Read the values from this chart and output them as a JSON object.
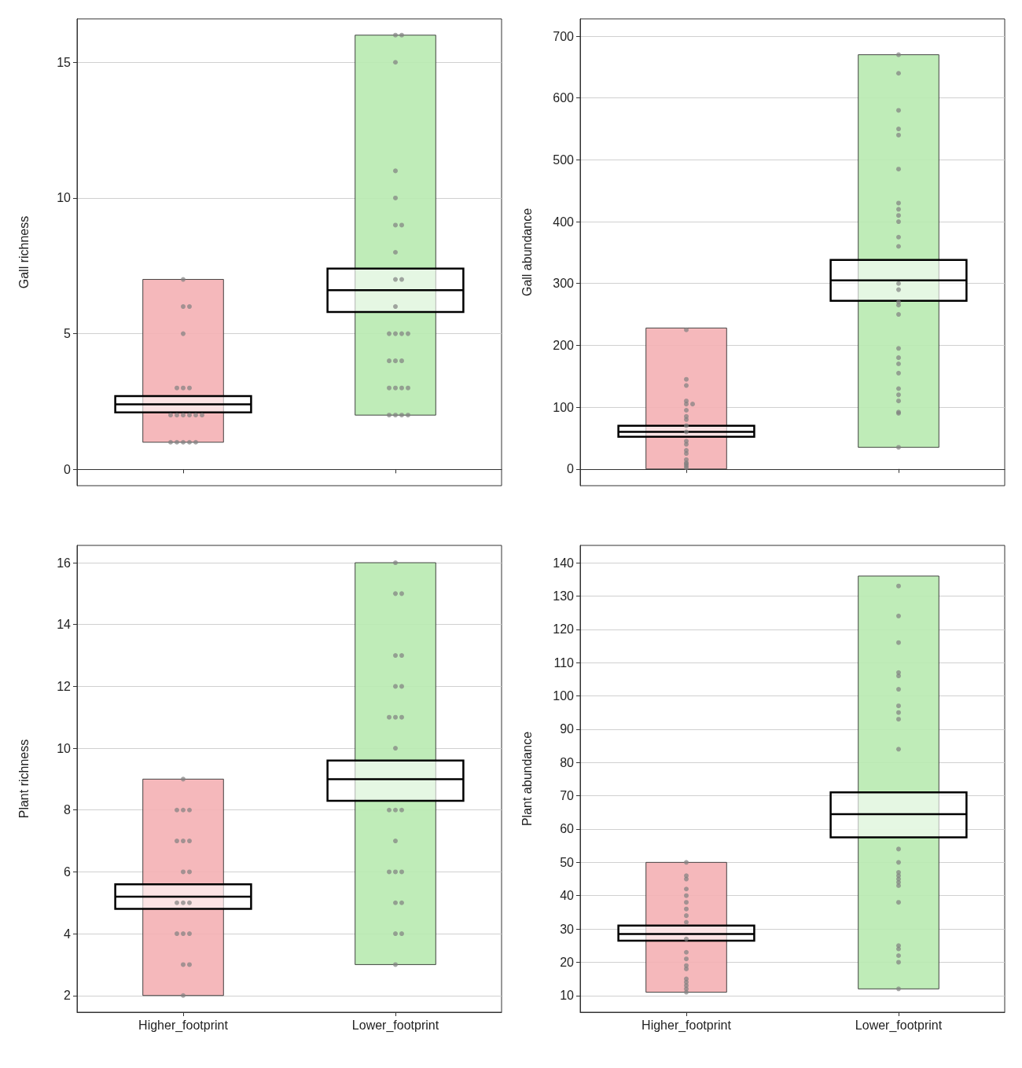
{
  "chart_data": [
    {
      "type": "bar",
      "ylabel": "Gall richness",
      "categories": [
        "Higher_footprint",
        "Lower_footprint"
      ],
      "ylim": [
        -0.6,
        16.6
      ],
      "yticks": [
        0,
        5,
        10,
        15
      ],
      "grid": "y",
      "tick_labels": "y",
      "series": [
        {
          "type": "bar",
          "colors": [
            "#f4b0b4",
            "#b8eab0"
          ],
          "base": [
            1,
            2
          ],
          "values": [
            6,
            14
          ]
        },
        {
          "type": "scatter",
          "color": "#808080",
          "marker": "circle",
          "x": [
            "Higher_footprint",
            "Higher_footprint",
            "Higher_footprint",
            "Higher_footprint",
            "Higher_footprint",
            "Higher_footprint",
            "Higher_footprint",
            "Higher_footprint",
            "Higher_footprint",
            "Higher_footprint",
            "Higher_footprint",
            "Higher_footprint",
            "Higher_footprint",
            "Higher_footprint",
            "Higher_footprint",
            "Higher_footprint",
            "Higher_footprint",
            "Higher_footprint",
            "Lower_footprint",
            "Lower_footprint",
            "Lower_footprint",
            "Lower_footprint",
            "Lower_footprint",
            "Lower_footprint",
            "Lower_footprint",
            "Lower_footprint",
            "Lower_footprint",
            "Lower_footprint",
            "Lower_footprint",
            "Lower_footprint",
            "Lower_footprint",
            "Lower_footprint",
            "Lower_footprint",
            "Lower_footprint",
            "Lower_footprint",
            "Lower_footprint",
            "Lower_footprint",
            "Lower_footprint",
            "Lower_footprint",
            "Lower_footprint",
            "Lower_footprint",
            "Lower_footprint",
            "Lower_footprint",
            "Lower_footprint"
          ],
          "values": [
            1,
            1,
            1,
            1,
            1,
            2,
            2,
            2,
            2,
            2,
            2,
            3,
            3,
            3,
            5,
            6,
            6,
            7,
            2,
            2,
            2,
            2,
            3,
            3,
            3,
            3,
            4,
            4,
            4,
            5,
            5,
            5,
            5,
            6,
            7,
            7,
            8,
            9,
            9,
            10,
            11,
            15,
            16,
            16
          ]
        },
        {
          "type": "box",
          "color": "#000000",
          "boxes": [
            {
              "low": 2.1,
              "q1": 2.1,
              "median": 2.4,
              "q3": 2.7,
              "high": 2.7
            },
            {
              "low": 5.8,
              "q1": 5.8,
              "median": 6.6,
              "q3": 7.4,
              "high": 7.4
            }
          ]
        }
      ]
    },
    {
      "type": "bar",
      "ylabel": "Gall abundance",
      "categories": [
        "Higher_footprint",
        "Lower_footprint"
      ],
      "ylim": [
        -27,
        728
      ],
      "yticks": [
        0,
        100,
        200,
        300,
        400,
        500,
        600,
        700
      ],
      "grid": "y",
      "tick_labels": "y",
      "series": [
        {
          "type": "bar",
          "colors": [
            "#f4b0b4",
            "#b8eab0"
          ],
          "base": [
            0,
            35
          ],
          "values": [
            228,
            635
          ]
        },
        {
          "type": "scatter",
          "color": "#808080",
          "marker": "circle",
          "x": [
            "Higher_footprint",
            "Higher_footprint",
            "Higher_footprint",
            "Higher_footprint",
            "Higher_footprint",
            "Higher_footprint",
            "Higher_footprint",
            "Higher_footprint",
            "Higher_footprint",
            "Higher_footprint",
            "Higher_footprint",
            "Higher_footprint",
            "Higher_footprint",
            "Higher_footprint",
            "Higher_footprint",
            "Higher_footprint",
            "Higher_footprint",
            "Higher_footprint",
            "Higher_footprint",
            "Higher_footprint",
            "Lower_footprint",
            "Lower_footprint",
            "Lower_footprint",
            "Lower_footprint",
            "Lower_footprint",
            "Lower_footprint",
            "Lower_footprint",
            "Lower_footprint",
            "Lower_footprint",
            "Lower_footprint",
            "Lower_footprint",
            "Lower_footprint",
            "Lower_footprint",
            "Lower_footprint",
            "Lower_footprint",
            "Lower_footprint",
            "Lower_footprint",
            "Lower_footprint",
            "Lower_footprint",
            "Lower_footprint",
            "Lower_footprint",
            "Lower_footprint",
            "Lower_footprint",
            "Lower_footprint",
            "Lower_footprint",
            "Lower_footprint",
            "Lower_footprint"
          ],
          "values": [
            2,
            5,
            8,
            10,
            15,
            25,
            30,
            40,
            45,
            60,
            70,
            80,
            85,
            95,
            105,
            105,
            110,
            135,
            145,
            225,
            35,
            90,
            92,
            110,
            120,
            130,
            155,
            170,
            180,
            195,
            250,
            265,
            270,
            290,
            300,
            360,
            375,
            400,
            410,
            420,
            430,
            485,
            540,
            550,
            580,
            640,
            670
          ]
        },
        {
          "type": "box",
          "color": "#000000",
          "boxes": [
            {
              "low": 52,
              "q1": 52,
              "median": 60,
              "q3": 70,
              "high": 70
            },
            {
              "low": 272,
              "q1": 272,
              "median": 305,
              "q3": 338,
              "high": 338
            }
          ]
        }
      ]
    },
    {
      "type": "bar",
      "ylabel": "Plant richness",
      "categories": [
        "Higher_footprint",
        "Lower_footprint"
      ],
      "ylim": [
        1.46,
        16.56
      ],
      "yticks": [
        2,
        4,
        6,
        8,
        10,
        12,
        14,
        16
      ],
      "grid": "y",
      "series": [
        {
          "type": "bar",
          "colors": [
            "#f4b0b4",
            "#b8eab0"
          ],
          "base": [
            2,
            3
          ],
          "values": [
            7,
            13
          ]
        },
        {
          "type": "scatter",
          "color": "#808080",
          "marker": "circle",
          "x": [
            "Higher_footprint",
            "Higher_footprint",
            "Higher_footprint",
            "Higher_footprint",
            "Higher_footprint",
            "Higher_footprint",
            "Higher_footprint",
            "Higher_footprint",
            "Higher_footprint",
            "Higher_footprint",
            "Higher_footprint",
            "Higher_footprint",
            "Higher_footprint",
            "Higher_footprint",
            "Higher_footprint",
            "Higher_footprint",
            "Higher_footprint",
            "Higher_footprint",
            "Lower_footprint",
            "Lower_footprint",
            "Lower_footprint",
            "Lower_footprint",
            "Lower_footprint",
            "Lower_footprint",
            "Lower_footprint",
            "Lower_footprint",
            "Lower_footprint",
            "Lower_footprint",
            "Lower_footprint",
            "Lower_footprint",
            "Lower_footprint",
            "Lower_footprint",
            "Lower_footprint",
            "Lower_footprint",
            "Lower_footprint",
            "Lower_footprint",
            "Lower_footprint",
            "Lower_footprint",
            "Lower_footprint",
            "Lower_footprint",
            "Lower_footprint"
          ],
          "values": [
            2,
            3,
            3,
            4,
            4,
            4,
            5,
            5,
            5,
            6,
            6,
            7,
            7,
            7,
            8,
            8,
            8,
            9,
            3,
            4,
            4,
            5,
            5,
            6,
            6,
            6,
            7,
            8,
            8,
            8,
            10,
            11,
            11,
            11,
            12,
            12,
            13,
            13,
            15,
            15,
            16
          ]
        },
        {
          "type": "box",
          "color": "#000000",
          "boxes": [
            {
              "low": 4.8,
              "q1": 4.8,
              "median": 5.2,
              "q3": 5.6,
              "high": 5.6
            },
            {
              "low": 8.3,
              "q1": 8.3,
              "median": 9,
              "q3": 9.6,
              "high": 9.6
            }
          ]
        }
      ]
    },
    {
      "type": "bar",
      "ylabel": "Plant abundance",
      "categories": [
        "Higher_footprint",
        "Lower_footprint"
      ],
      "ylim": [
        5,
        145.2
      ],
      "yticks": [
        10,
        20,
        30,
        40,
        50,
        60,
        70,
        80,
        90,
        100,
        110,
        120,
        130,
        140
      ],
      "grid": "y",
      "series": [
        {
          "type": "bar",
          "colors": [
            "#f4b0b4",
            "#b8eab0"
          ],
          "base": [
            11,
            12
          ],
          "values": [
            39,
            124
          ]
        },
        {
          "type": "scatter",
          "color": "#808080",
          "marker": "circle",
          "x": [
            "Higher_footprint",
            "Higher_footprint",
            "Higher_footprint",
            "Higher_footprint",
            "Higher_footprint",
            "Higher_footprint",
            "Higher_footprint",
            "Higher_footprint",
            "Higher_footprint",
            "Higher_footprint",
            "Higher_footprint",
            "Higher_footprint",
            "Higher_footprint",
            "Higher_footprint",
            "Higher_footprint",
            "Higher_footprint",
            "Higher_footprint",
            "Higher_footprint",
            "Higher_footprint",
            "Lower_footprint",
            "Lower_footprint",
            "Lower_footprint",
            "Lower_footprint",
            "Lower_footprint",
            "Lower_footprint",
            "Lower_footprint",
            "Lower_footprint",
            "Lower_footprint",
            "Lower_footprint",
            "Lower_footprint",
            "Lower_footprint",
            "Lower_footprint",
            "Lower_footprint",
            "Lower_footprint",
            "Lower_footprint",
            "Lower_footprint",
            "Lower_footprint",
            "Lower_footprint",
            "Lower_footprint",
            "Lower_footprint",
            "Lower_footprint",
            "Lower_footprint"
          ],
          "values": [
            11,
            12,
            13,
            14,
            15,
            18,
            19,
            21,
            23,
            27,
            32,
            34,
            36,
            38,
            40,
            42,
            45,
            46,
            50,
            12,
            20,
            22,
            24,
            25,
            38,
            43,
            44,
            45,
            46,
            47,
            50,
            54,
            84,
            93,
            95,
            97,
            102,
            106,
            107,
            116,
            124,
            133
          ]
        },
        {
          "type": "box",
          "color": "#000000",
          "boxes": [
            {
              "low": 26.5,
              "q1": 26.5,
              "median": 28.5,
              "q3": 31,
              "high": 31
            },
            {
              "low": 57.5,
              "q1": 57.5,
              "median": 64.5,
              "q3": 71,
              "high": 71
            }
          ]
        }
      ]
    }
  ]
}
